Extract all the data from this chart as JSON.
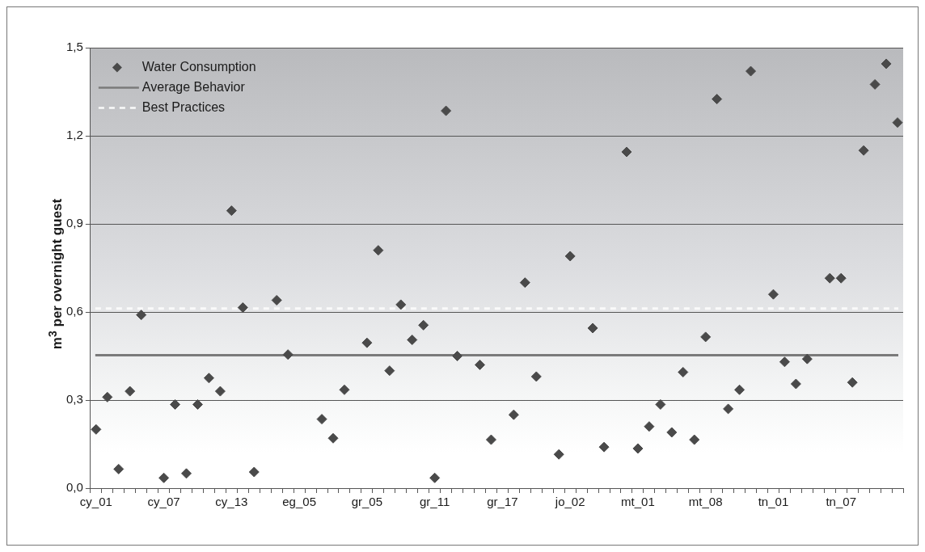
{
  "chart_data": {
    "type": "scatter",
    "ylabel": "m$^{3}$ per overnight guest",
    "categories": [
      "cy_01",
      null,
      null,
      null,
      null,
      null,
      "cy_07",
      null,
      null,
      null,
      null,
      null,
      "cy_13",
      null,
      null,
      null,
      null,
      null,
      "eg_05",
      null,
      null,
      null,
      null,
      null,
      "gr_05",
      null,
      null,
      null,
      null,
      null,
      "gr_11",
      null,
      null,
      null,
      null,
      null,
      "gr_17",
      null,
      null,
      null,
      null,
      null,
      "jo_02",
      null,
      null,
      null,
      null,
      null,
      "mt_01",
      null,
      null,
      null,
      null,
      null,
      "mt_08",
      null,
      null,
      null,
      null,
      null,
      "tn_01",
      null,
      null,
      null,
      null,
      null,
      "tn_07",
      null,
      null,
      null,
      null,
      null
    ],
    "series": [
      {
        "name": "Water Consumption",
        "color": "#4a4a4a",
        "values": [
          0.2,
          0.31,
          0.065,
          0.33,
          0.59,
          null,
          0.035,
          0.285,
          0.05,
          0.285,
          0.375,
          0.33,
          0.945,
          0.615,
          0.055,
          null,
          0.64,
          0.455,
          null,
          null,
          0.235,
          0.17,
          0.335,
          null,
          0.495,
          0.81,
          0.4,
          0.625,
          0.505,
          0.555,
          0.035,
          1.285,
          0.45,
          null,
          0.42,
          0.165,
          null,
          0.25,
          0.7,
          0.38,
          null,
          0.115,
          0.79,
          null,
          0.545,
          0.14,
          null,
          1.145,
          0.135,
          0.21,
          0.285,
          0.19,
          0.395,
          0.165,
          0.515,
          1.325,
          0.27,
          0.335,
          1.42,
          null,
          0.66,
          0.43,
          0.355,
          0.44,
          null,
          0.715,
          0.715,
          0.36,
          1.15,
          1.375,
          1.445,
          1.245
        ]
      }
    ],
    "ref_lines": [
      {
        "axis": "y",
        "value": 0.453,
        "label": "Average Behavior",
        "color": "#7a7a7a",
        "line_style": "solid"
      },
      {
        "axis": "y",
        "value": 0.612,
        "label": "Best Practices",
        "color": "#fafafa",
        "line_style": "dashed"
      }
    ],
    "ylim": [
      0,
      1.5
    ],
    "yticks": [
      {
        "value": 0,
        "label": "0,0"
      },
      {
        "value": 0.3,
        "label": "0,3"
      },
      {
        "value": 0.6,
        "label": "0,6"
      },
      {
        "value": 0.9,
        "label": "0,9"
      },
      {
        "value": 1.2,
        "label": "1,2"
      },
      {
        "value": 1.5,
        "label": "1,5"
      }
    ],
    "grid": "y",
    "legend": "top left",
    "marker": "diamond"
  }
}
